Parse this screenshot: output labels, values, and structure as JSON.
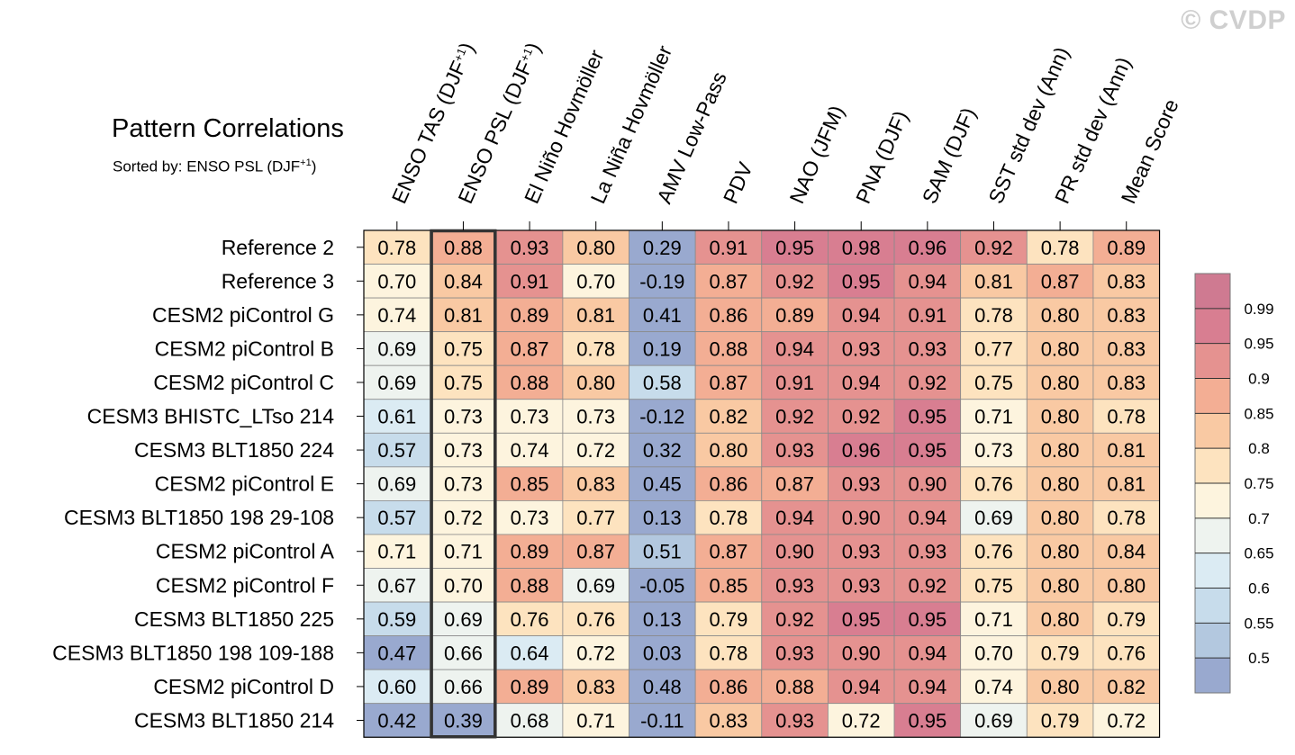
{
  "title": "Pattern Correlations",
  "subtitle": "Sorted by: ENSO PSL (DJF",
  "subtitle_sup": "+1",
  "subtitle_close": ")",
  "watermark": "© CVDP",
  "chart_data": {
    "type": "heatmap",
    "title": "Pattern Correlations",
    "sorted_by": "ENSO PSL (DJF+1)",
    "highlight_column": 1,
    "columns": [
      {
        "label": "ENSO TAS (DJF",
        "sup": "+1",
        "close": ")"
      },
      {
        "label": "ENSO PSL (DJF",
        "sup": "+1",
        "close": ")"
      },
      {
        "label": "El Niño Hovmöller"
      },
      {
        "label": "La Niña Hovmöller"
      },
      {
        "label": "AMV Low-Pass"
      },
      {
        "label": "PDV"
      },
      {
        "label": "NAO (JFM)"
      },
      {
        "label": "PNA (DJF)"
      },
      {
        "label": "SAM (DJF)"
      },
      {
        "label": "SST std dev (Ann)"
      },
      {
        "label": "PR std dev (Ann)"
      },
      {
        "label": "Mean Score"
      }
    ],
    "rows": [
      {
        "label": "Reference 2",
        "values": [
          "0.78",
          "0.88",
          "0.93",
          "0.80",
          "0.29",
          "0.91",
          "0.95",
          "0.98",
          "0.96",
          "0.92",
          "0.78",
          "0.89"
        ]
      },
      {
        "label": "Reference 3",
        "values": [
          "0.70",
          "0.84",
          "0.91",
          "0.70",
          "-0.19",
          "0.87",
          "0.92",
          "0.95",
          "0.94",
          "0.81",
          "0.87",
          "0.83"
        ]
      },
      {
        "label": "CESM2 piControl G",
        "values": [
          "0.74",
          "0.81",
          "0.89",
          "0.81",
          "0.41",
          "0.86",
          "0.89",
          "0.94",
          "0.91",
          "0.78",
          "0.80",
          "0.83"
        ]
      },
      {
        "label": "CESM2 piControl B",
        "values": [
          "0.69",
          "0.75",
          "0.87",
          "0.78",
          "0.19",
          "0.88",
          "0.94",
          "0.93",
          "0.93",
          "0.77",
          "0.80",
          "0.83"
        ]
      },
      {
        "label": "CESM2 piControl C",
        "values": [
          "0.69",
          "0.75",
          "0.88",
          "0.80",
          "0.58",
          "0.87",
          "0.91",
          "0.94",
          "0.92",
          "0.75",
          "0.80",
          "0.83"
        ]
      },
      {
        "label": "CESM3 BHISTC_LTso 214",
        "values": [
          "0.61",
          "0.73",
          "0.73",
          "0.73",
          "-0.12",
          "0.82",
          "0.92",
          "0.92",
          "0.95",
          "0.71",
          "0.80",
          "0.78"
        ]
      },
      {
        "label": "CESM3 BLT1850 224",
        "values": [
          "0.57",
          "0.73",
          "0.74",
          "0.72",
          "0.32",
          "0.80",
          "0.93",
          "0.96",
          "0.95",
          "0.73",
          "0.80",
          "0.81"
        ]
      },
      {
        "label": "CESM2 piControl E",
        "values": [
          "0.69",
          "0.73",
          "0.85",
          "0.83",
          "0.45",
          "0.86",
          "0.87",
          "0.93",
          "0.90",
          "0.76",
          "0.80",
          "0.81"
        ]
      },
      {
        "label": "CESM3 BLT1850 198 29-108",
        "values": [
          "0.57",
          "0.72",
          "0.73",
          "0.77",
          "0.13",
          "0.78",
          "0.94",
          "0.90",
          "0.94",
          "0.69",
          "0.80",
          "0.78"
        ]
      },
      {
        "label": "CESM2 piControl A",
        "values": [
          "0.71",
          "0.71",
          "0.89",
          "0.87",
          "0.51",
          "0.87",
          "0.90",
          "0.93",
          "0.93",
          "0.76",
          "0.80",
          "0.84"
        ]
      },
      {
        "label": "CESM2 piControl F",
        "values": [
          "0.67",
          "0.70",
          "0.88",
          "0.69",
          "-0.05",
          "0.85",
          "0.93",
          "0.93",
          "0.92",
          "0.75",
          "0.80",
          "0.80"
        ]
      },
      {
        "label": "CESM3 BLT1850 225",
        "values": [
          "0.59",
          "0.69",
          "0.76",
          "0.76",
          "0.13",
          "0.79",
          "0.92",
          "0.95",
          "0.95",
          "0.71",
          "0.80",
          "0.79"
        ]
      },
      {
        "label": "CESM3 BLT1850 198 109-188",
        "values": [
          "0.47",
          "0.66",
          "0.64",
          "0.72",
          "0.03",
          "0.78",
          "0.93",
          "0.90",
          "0.94",
          "0.70",
          "0.79",
          "0.76"
        ]
      },
      {
        "label": "CESM2 piControl D",
        "values": [
          "0.60",
          "0.66",
          "0.89",
          "0.83",
          "0.48",
          "0.86",
          "0.88",
          "0.94",
          "0.94",
          "0.74",
          "0.80",
          "0.82"
        ]
      },
      {
        "label": "CESM3 BLT1850 214",
        "values": [
          "0.42",
          "0.39",
          "0.68",
          "0.71",
          "-0.11",
          "0.83",
          "0.93",
          "0.72",
          "0.95",
          "0.69",
          "0.79",
          "0.72"
        ]
      }
    ],
    "colorbar": {
      "tick_labels": [
        "0.99",
        "0.95",
        "0.9",
        "0.85",
        "0.8",
        "0.75",
        "0.7",
        "0.65",
        "0.6",
        "0.55",
        "0.5"
      ],
      "levels": [
        0.5,
        0.55,
        0.6,
        0.65,
        0.7,
        0.75,
        0.8,
        0.85,
        0.9,
        0.95,
        0.99
      ],
      "colors": [
        "#99a9cf",
        "#b3c8df",
        "#c7dceb",
        "#dbebf3",
        "#eef3ef",
        "#fdf4de",
        "#fde3bf",
        "#f9c9a3",
        "#f3ae94",
        "#e59290",
        "#d87e91",
        "#cf7a91"
      ]
    }
  }
}
